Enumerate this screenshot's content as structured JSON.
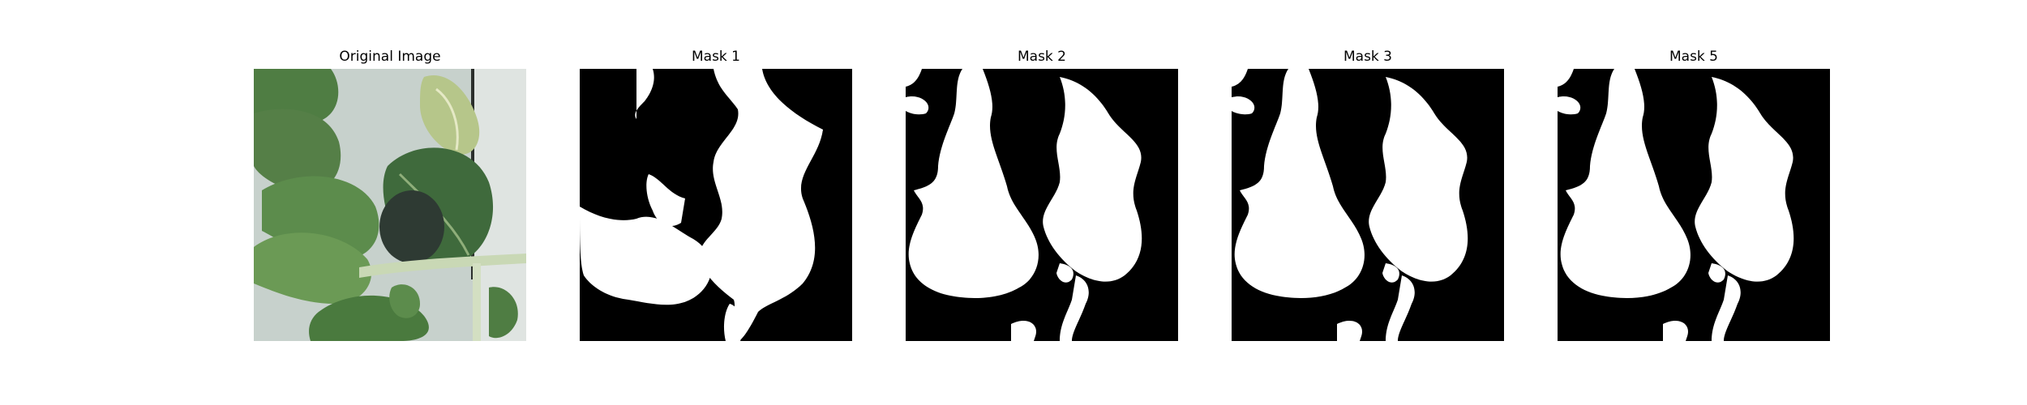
{
  "figure": {
    "panels": [
      {
        "title": "Original Image",
        "kind": "photo"
      },
      {
        "title": "Mask 1",
        "kind": "mask",
        "variant": "m1"
      },
      {
        "title": "Mask 2",
        "kind": "mask",
        "variant": "m2"
      },
      {
        "title": "Mask 3",
        "kind": "mask",
        "variant": "m2"
      },
      {
        "title": "Mask 5",
        "kind": "mask",
        "variant": "m2"
      }
    ],
    "colors": {
      "mask_bg": "#000000",
      "mask_fg": "#ffffff",
      "photo_bg": "#c9d3cf",
      "leaf_dark": "#3f6a3c",
      "leaf_mid": "#5d8a4f",
      "leaf_light": "#9cb97a",
      "leaf_pale": "#c9d3a0",
      "stem": "#c9d8b5"
    }
  }
}
